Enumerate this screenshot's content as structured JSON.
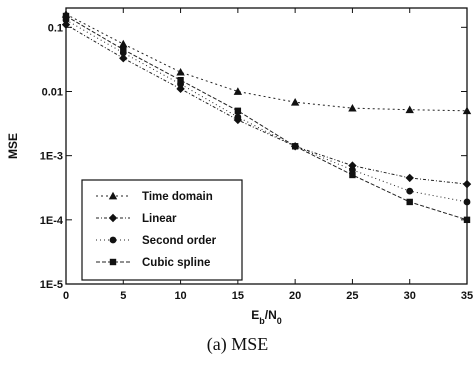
{
  "chart_data": {
    "type": "line",
    "title": "",
    "xlabel": {
      "main": "E",
      "sub1": "b",
      "mid": "/N",
      "sub2": "0"
    },
    "ylabel": "MSE",
    "x": [
      0,
      5,
      10,
      15,
      20,
      25,
      30,
      35
    ],
    "xlim": [
      0,
      35
    ],
    "ylim": [
      1e-05,
      0.2
    ],
    "yscale": "log",
    "x_ticks": [
      "0",
      "5",
      "10",
      "15",
      "20",
      "25",
      "30",
      "35"
    ],
    "y_ticks": [
      {
        "value": 0.1,
        "label": "0.1"
      },
      {
        "value": 0.01,
        "label": "0.01"
      },
      {
        "value": 0.001,
        "label": "1E-3"
      },
      {
        "value": 0.0001,
        "label": "1E-4"
      },
      {
        "value": 1e-05,
        "label": "1E-5"
      }
    ],
    "grid": false,
    "legend": "center-left",
    "series": [
      {
        "name": "Time domain",
        "marker": "triangle",
        "values": [
          0.16,
          0.055,
          0.02,
          0.01,
          0.0068,
          0.0055,
          0.0052,
          0.005
        ]
      },
      {
        "name": "Linear",
        "marker": "diamond",
        "values": [
          0.11,
          0.033,
          0.011,
          0.0036,
          0.0014,
          0.0007,
          0.00045,
          0.00036
        ]
      },
      {
        "name": "Second order",
        "marker": "circle",
        "values": [
          0.13,
          0.04,
          0.013,
          0.004,
          0.0014,
          0.0006,
          0.00028,
          0.00019
        ]
      },
      {
        "name": "Cubic spline",
        "marker": "square",
        "values": [
          0.15,
          0.045,
          0.015,
          0.005,
          0.0014,
          0.0005,
          0.00019,
          0.0001
        ]
      }
    ]
  },
  "caption": "(a)  MSE"
}
